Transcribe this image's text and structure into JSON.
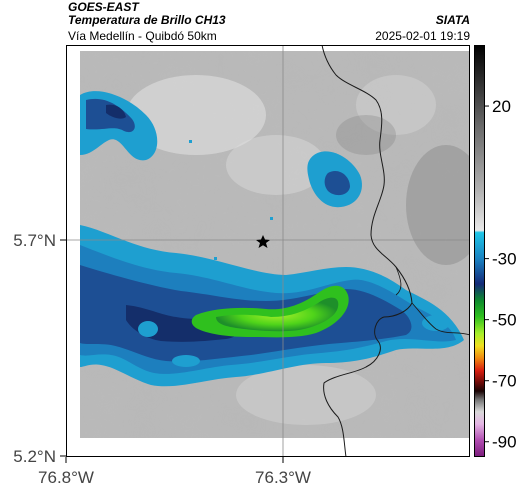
{
  "header": {
    "satellite": "GOES-EAST",
    "product": "Temperatura de Brillo CH13",
    "region": "Vía Medellín - Quibdó 50km",
    "organization": "SIATA",
    "timestamp": "2025-02-01 19:19"
  },
  "map": {
    "y_ticks": [
      "5.7°N",
      "5.2°N"
    ],
    "x_ticks": [
      "76.8°W",
      "76.3°W"
    ],
    "marker": "star",
    "colors": {
      "background_gray": "#b8b8b8",
      "cold_cyan": "#1e9fd0",
      "cold_blue": "#1d4f94",
      "green": "#2fc01e",
      "lime": "#a6ef2a",
      "border_line": "#1a1a1a",
      "grid_line": "#8a8a8a"
    }
  },
  "colorbar": {
    "labels": [
      "20",
      "-30",
      "-50",
      "-70",
      "-90"
    ],
    "range": [
      -95,
      40
    ],
    "unit": ""
  }
}
